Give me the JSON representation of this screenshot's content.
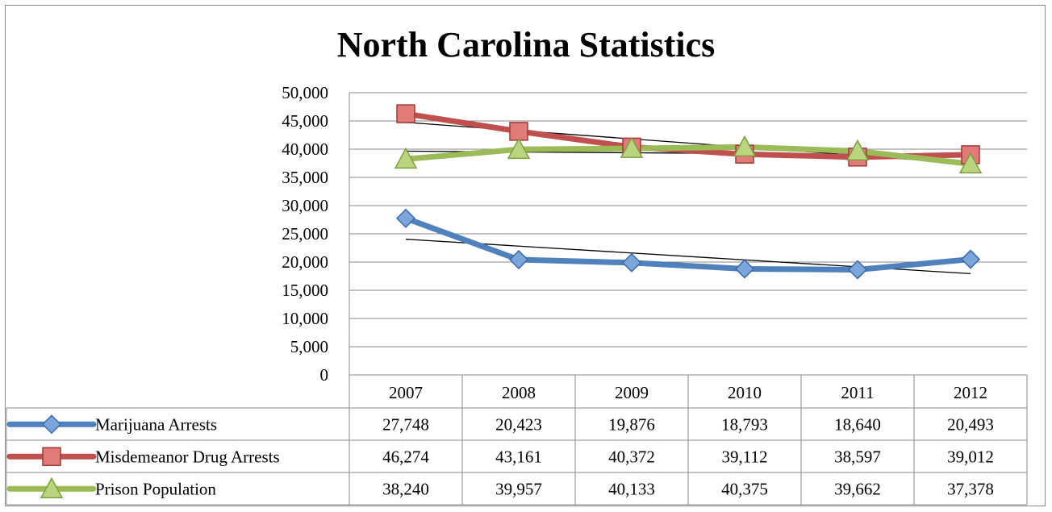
{
  "chart_data": {
    "type": "line",
    "title": "North Carolina Statistics",
    "categories": [
      "2007",
      "2008",
      "2009",
      "2010",
      "2011",
      "2012"
    ],
    "ylim": [
      0,
      50000
    ],
    "y_ticks": [
      "0",
      "5,000",
      "10,000",
      "15,000",
      "20,000",
      "25,000",
      "30,000",
      "35,000",
      "40,000",
      "45,000",
      "50,000"
    ],
    "grid": true,
    "data_table": true,
    "trendlines": true,
    "series": [
      {
        "name": "Marijuana Arrests",
        "values": [
          27748,
          20423,
          19876,
          18793,
          18640,
          20493
        ],
        "labels": [
          "27,748",
          "20,423",
          "19,876",
          "18,793",
          "18,640",
          "20,493"
        ],
        "color": "#4f81bd",
        "marker": "diamond"
      },
      {
        "name": "Misdemeanor Drug Arrests",
        "values": [
          46274,
          43161,
          40372,
          39112,
          38597,
          39012
        ],
        "labels": [
          "46,274",
          "43,161",
          "40,372",
          "39,112",
          "38,597",
          "39,012"
        ],
        "color": "#c0504d",
        "marker": "square"
      },
      {
        "name": "Prison Population",
        "values": [
          38240,
          39957,
          40133,
          40375,
          39662,
          37378
        ],
        "labels": [
          "38,240",
          "39,957",
          "40,133",
          "40,375",
          "39,662",
          "37,378"
        ],
        "color": "#9bbb59",
        "marker": "triangle"
      }
    ]
  }
}
